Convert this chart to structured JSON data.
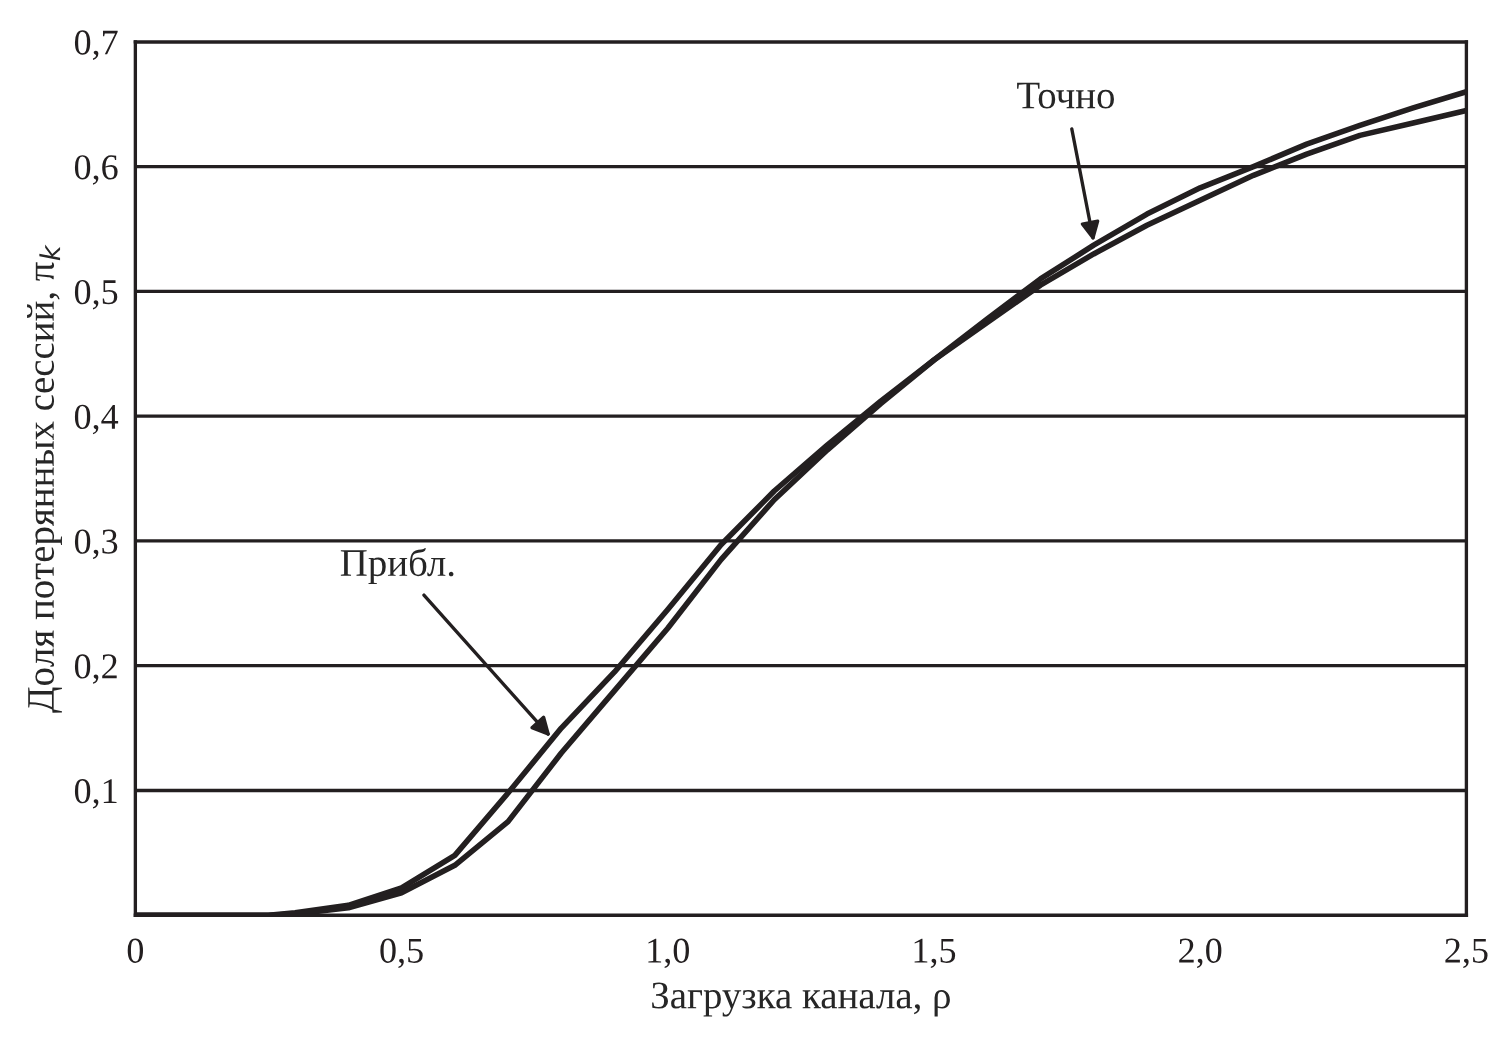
{
  "chart_data": {
    "type": "line",
    "xlabel": "Загрузка канала, ρ",
    "ylabel": "Доля потерянных сессий, π$_{k}$",
    "xlim": [
      0,
      2.5
    ],
    "ylim": [
      0,
      0.7
    ],
    "xticks": [
      {
        "value": 0,
        "label": "0"
      },
      {
        "value": 0.5,
        "label": "0,5"
      },
      {
        "value": 1.0,
        "label": "1,0"
      },
      {
        "value": 1.5,
        "label": "1,5"
      },
      {
        "value": 2.0,
        "label": "2,0"
      },
      {
        "value": 2.5,
        "label": "2,5"
      }
    ],
    "yticks": [
      {
        "value": 0.1,
        "label": "0,1"
      },
      {
        "value": 0.2,
        "label": "0,2"
      },
      {
        "value": 0.3,
        "label": "0,3"
      },
      {
        "value": 0.4,
        "label": "0,4"
      },
      {
        "value": 0.5,
        "label": "0,5"
      },
      {
        "value": 0.6,
        "label": "0,6"
      },
      {
        "value": 0.7,
        "label": "0,7"
      }
    ],
    "grid": "y",
    "line_style": "solid",
    "marker": "none",
    "x": [
      0,
      0.25,
      0.3,
      0.4,
      0.5,
      0.6,
      0.7,
      0.8,
      0.9,
      1.0,
      1.1,
      1.2,
      1.3,
      1.4,
      1.5,
      1.6,
      1.7,
      1.8,
      1.9,
      2.0,
      2.1,
      2.2,
      2.3,
      2.4,
      2.5
    ],
    "series": [
      {
        "color": "#231f20",
        "values": [
          0,
          0,
          0.002,
          0.008,
          0.022,
          0.048,
          0.098,
          0.15,
          0.195,
          0.245,
          0.297,
          0.34,
          0.377,
          0.412,
          0.445,
          0.475,
          0.505,
          0.53,
          0.553,
          0.573,
          0.593,
          0.61,
          0.625,
          0.635,
          0.645
        ]
      },
      {
        "color": "#231f20",
        "values": [
          0,
          0,
          0.001,
          0.006,
          0.018,
          0.04,
          0.075,
          0.13,
          0.18,
          0.23,
          0.285,
          0.333,
          0.373,
          0.41,
          0.445,
          0.478,
          0.51,
          0.537,
          0.562,
          0.583,
          0.6,
          0.618,
          0.633,
          0.647,
          0.66
        ]
      }
    ],
    "annotations": [
      {
        "text": "Прибл.",
        "x": 0.78,
        "y": 0.143
      },
      {
        "text": "Точно",
        "x": 1.8,
        "y": 0.54
      }
    ]
  }
}
